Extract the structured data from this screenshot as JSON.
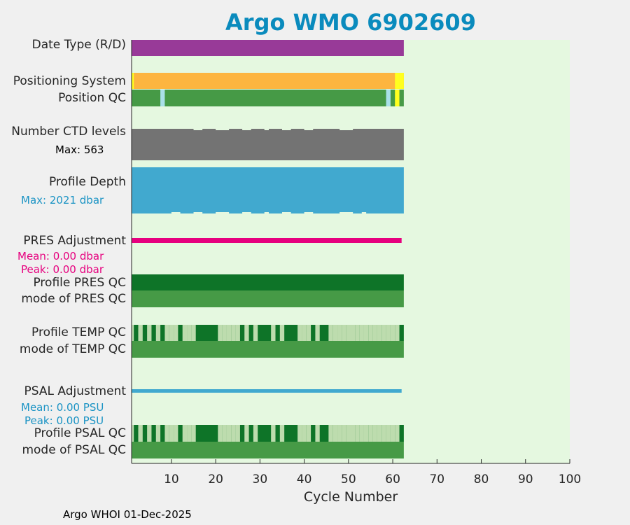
{
  "title": "Argo WMO 6902609",
  "footer": "Argo WHOI 01-Dec-2025",
  "colors": {
    "plot_bg": "#e5f8e0",
    "date_type": "#983a98",
    "positioning": "#fdb53f",
    "positioning_alt": "#ffff1f",
    "qc_good": "#469a46",
    "qc_light": "#a9e0e8",
    "qc_dark": "#0e7428",
    "qc_pale": "#bddcae",
    "ctd": "#737373",
    "depth": "#41a9cf",
    "pres_adj": "#e6007e",
    "psal_adj": "#41a9cf",
    "title": "#0a8bbd"
  },
  "rows": [
    {
      "key": "date_type",
      "label": "Date Type (R/D)"
    },
    {
      "key": "positioning",
      "label": "Positioning System"
    },
    {
      "key": "position_qc",
      "label": "Position QC"
    },
    {
      "key": "ctd_levels",
      "label": "Number CTD levels",
      "note": "Max: 563"
    },
    {
      "key": "profile_depth",
      "label": "Profile Depth",
      "note": "Max: 2021 dbar"
    },
    {
      "key": "pres_adjustment",
      "label": "PRES Adjustment",
      "note1": "Mean: 0.00 dbar",
      "note2": "Peak: 0.00 dbar"
    },
    {
      "key": "profile_pres_qc",
      "label": "Profile PRES QC"
    },
    {
      "key": "mode_pres_qc",
      "label": "mode of PRES QC"
    },
    {
      "key": "profile_temp_qc",
      "label": "Profile TEMP QC"
    },
    {
      "key": "mode_temp_qc",
      "label": "mode of TEMP QC"
    },
    {
      "key": "psal_adjustment",
      "label": "PSAL Adjustment",
      "note1": "Mean: 0.00 PSU",
      "note2": "Peak: 0.00 PSU"
    },
    {
      "key": "profile_psal_qc",
      "label": "Profile PSAL QC"
    },
    {
      "key": "mode_psal_qc",
      "label": "mode of PSAL QC"
    }
  ],
  "chart_data": {
    "type": "bar",
    "xlabel": "Cycle Number",
    "xlim": [
      1,
      100
    ],
    "xticks": [
      10,
      20,
      30,
      40,
      50,
      60,
      70,
      80,
      90,
      100
    ],
    "cycles": [
      1,
      62
    ],
    "positioning_alt_cycles": [
      1,
      61,
      62
    ],
    "position_qc_light_cycles": [
      8,
      59
    ],
    "position_qc_alt_cycles": [
      61
    ],
    "qc_pale_cycles": [
      1,
      3,
      5,
      7,
      9,
      10,
      11,
      13,
      14,
      15,
      21,
      22,
      23,
      24,
      25,
      27,
      29,
      33,
      35,
      39,
      40,
      41,
      43,
      46,
      47,
      48,
      49,
      50,
      51,
      52,
      53,
      54,
      55,
      56,
      57,
      58,
      59,
      60,
      61
    ],
    "ctd_levels_max": 563,
    "profile_depth_max": 2021,
    "pres_adjustment_mean": 0.0,
    "pres_adjustment_peak": 0.0,
    "psal_adjustment_mean": 0.0,
    "psal_adjustment_peak": 0.0
  }
}
